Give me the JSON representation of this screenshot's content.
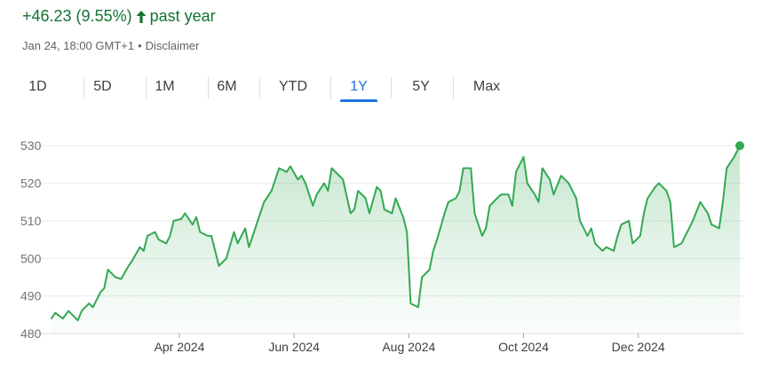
{
  "header": {
    "change_text": "+46.23 (9.55%)",
    "direction_label": "past year",
    "direction_icon": "arrow-up-icon",
    "timestamp": "Jan 24, 18:00 GMT+1",
    "separator": "•",
    "disclaimer": "Disclaimer"
  },
  "tabs": [
    {
      "label": "1D",
      "active": false
    },
    {
      "label": "5D",
      "active": false
    },
    {
      "label": "1M",
      "active": false
    },
    {
      "label": "6M",
      "active": false
    },
    {
      "label": "YTD",
      "active": false
    },
    {
      "label": "1Y",
      "active": true
    },
    {
      "label": "5Y",
      "active": false
    },
    {
      "label": "Max",
      "active": false
    }
  ],
  "colors": {
    "line": "#34a853",
    "positive_text": "#137333",
    "active_tab": "#1a73e8",
    "grid": "#e8eaed",
    "axis_text": "#70757a"
  },
  "chart_data": {
    "type": "area",
    "x_format": "date",
    "grid": true,
    "ylim": [
      480,
      531
    ],
    "xlim": [
      "2024-01-24",
      "2025-01-24"
    ],
    "yticks": [
      480,
      490,
      500,
      510,
      520,
      530
    ],
    "xticks": [
      {
        "label": "Apr 2024",
        "date": "2024-04-01"
      },
      {
        "label": "Jun 2024",
        "date": "2024-06-01"
      },
      {
        "label": "Aug 2024",
        "date": "2024-08-01"
      },
      {
        "label": "Oct 2024",
        "date": "2024-10-01"
      },
      {
        "label": "Dec 2024",
        "date": "2024-12-01"
      }
    ],
    "series": [
      {
        "x": [
          "2024-01-24",
          "2024-01-26",
          "2024-01-30",
          "2024-02-02",
          "2024-02-05",
          "2024-02-07",
          "2024-02-09",
          "2024-02-13",
          "2024-02-15",
          "2024-02-19",
          "2024-02-21",
          "2024-02-23",
          "2024-02-27",
          "2024-03-01",
          "2024-03-05",
          "2024-03-07",
          "2024-03-11",
          "2024-03-13",
          "2024-03-15",
          "2024-03-19",
          "2024-03-21",
          "2024-03-25",
          "2024-03-27",
          "2024-03-29",
          "2024-04-02",
          "2024-04-04",
          "2024-04-08",
          "2024-04-10",
          "2024-04-12",
          "2024-04-16",
          "2024-04-18",
          "2024-04-22",
          "2024-04-24",
          "2024-04-26",
          "2024-04-30",
          "2024-05-02",
          "2024-05-06",
          "2024-05-08",
          "2024-05-10",
          "2024-05-14",
          "2024-05-16",
          "2024-05-20",
          "2024-05-22",
          "2024-05-24",
          "2024-05-28",
          "2024-05-30",
          "2024-06-03",
          "2024-06-05",
          "2024-06-07",
          "2024-06-11",
          "2024-06-13",
          "2024-06-17",
          "2024-06-19",
          "2024-06-21",
          "2024-06-25",
          "2024-06-27",
          "2024-07-01",
          "2024-07-03",
          "2024-07-05",
          "2024-07-09",
          "2024-07-11",
          "2024-07-15",
          "2024-07-17",
          "2024-07-19",
          "2024-07-23",
          "2024-07-25",
          "2024-07-29",
          "2024-07-31",
          "2024-08-02",
          "2024-08-06",
          "2024-08-08",
          "2024-08-12",
          "2024-08-14",
          "2024-08-16",
          "2024-08-20",
          "2024-08-22",
          "2024-08-26",
          "2024-08-28",
          "2024-08-30",
          "2024-09-03",
          "2024-09-05",
          "2024-09-09",
          "2024-09-11",
          "2024-09-13",
          "2024-09-17",
          "2024-09-19",
          "2024-09-23",
          "2024-09-25",
          "2024-09-27",
          "2024-10-01",
          "2024-10-03",
          "2024-10-07",
          "2024-10-09",
          "2024-10-11",
          "2024-10-15",
          "2024-10-17",
          "2024-10-21",
          "2024-10-23",
          "2024-10-25",
          "2024-10-29",
          "2024-10-31",
          "2024-11-04",
          "2024-11-06",
          "2024-11-08",
          "2024-11-12",
          "2024-11-14",
          "2024-11-18",
          "2024-11-20",
          "2024-11-22",
          "2024-11-26",
          "2024-11-28",
          "2024-12-02",
          "2024-12-04",
          "2024-12-06",
          "2024-12-10",
          "2024-12-12",
          "2024-12-16",
          "2024-12-18",
          "2024-12-20",
          "2024-12-24",
          "2024-12-30",
          "2025-01-03",
          "2025-01-07",
          "2025-01-09",
          "2025-01-13",
          "2025-01-15",
          "2025-01-17",
          "2025-01-21",
          "2025-01-24"
        ],
        "y": [
          484,
          485.5,
          484,
          486,
          484.5,
          483.5,
          486,
          488,
          487,
          491,
          492,
          497,
          495,
          494.5,
          498,
          499.5,
          503,
          502,
          506,
          507,
          505,
          504,
          506,
          510,
          510.5,
          512,
          509,
          511,
          507,
          506,
          506,
          498,
          499,
          500,
          507,
          504,
          508,
          503,
          506,
          512,
          515,
          518,
          521,
          524,
          523,
          524.5,
          521,
          522,
          520,
          514,
          517,
          520,
          518,
          524,
          522,
          521,
          512,
          513,
          518,
          516,
          512,
          519,
          518,
          513,
          512,
          516,
          511,
          507,
          488,
          487,
          495,
          497,
          502,
          505,
          512,
          515,
          516,
          518,
          524,
          524,
          512,
          506,
          508,
          514,
          516,
          517,
          517,
          514,
          523,
          527,
          520,
          517,
          515,
          524,
          521,
          517,
          522,
          521,
          520,
          516,
          510,
          506,
          508,
          504,
          502,
          503,
          502,
          506,
          509,
          510,
          504,
          506,
          512,
          516,
          519,
          520,
          518,
          515,
          503,
          504,
          510,
          515,
          512,
          509,
          508,
          515,
          524,
          527,
          530
        ]
      }
    ]
  }
}
